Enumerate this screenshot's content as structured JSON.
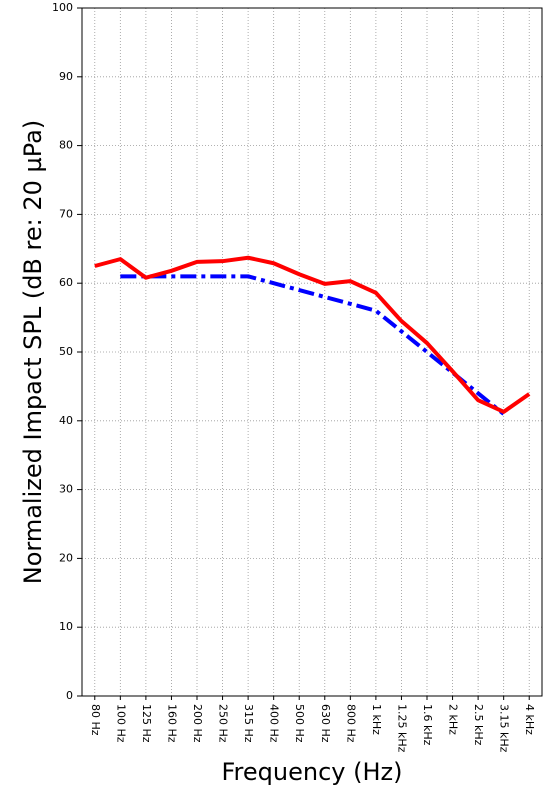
{
  "chart_data": {
    "type": "line",
    "x_label": "Frequency (Hz)",
    "y_label": "Normalized Impact SPL (dB re: 20 µPa)",
    "categories": [
      "80 Hz",
      "100 Hz",
      "125 Hz",
      "160 Hz",
      "200 Hz",
      "250 Hz",
      "315 Hz",
      "400 Hz",
      "500 Hz",
      "630 Hz",
      "800 Hz",
      "1 kHz",
      "1.25 kHz",
      "1.6 kHz",
      "2 kHz",
      "2.5 kHz",
      "3.15 kHz",
      "4 kHz"
    ],
    "series": [
      {
        "color": "#ff0000",
        "line_style": "solid",
        "values": [
          62.5,
          63.5,
          60.8,
          61.8,
          63.1,
          63.2,
          63.7,
          62.9,
          61.3,
          59.9,
          60.3,
          58.6,
          54.5,
          51.3,
          47.2,
          43.0,
          41.3,
          43.9
        ]
      },
      {
        "color": "#0000ff",
        "line_style": "dash-dot",
        "values": [
          null,
          61,
          61,
          61,
          61,
          61,
          61,
          60,
          59,
          58,
          57,
          56,
          53,
          50,
          47,
          44,
          41,
          null
        ]
      }
    ],
    "ylim": [
      0,
      100
    ],
    "yticks": [
      0,
      10,
      20,
      30,
      40,
      50,
      60,
      70,
      80,
      90,
      100
    ],
    "grid": true
  }
}
